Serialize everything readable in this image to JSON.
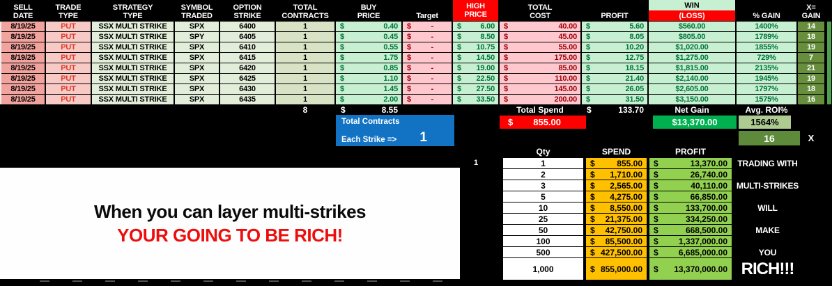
{
  "currency": "$",
  "colors": {
    "win_bg": "#c7efd1",
    "win_text": "#00753a",
    "loss_bg": "#ffc7ce",
    "loss_text": "#9c0006",
    "header_red": "#fe0000",
    "net_gain_green": "#00b050",
    "avg_roi_green": "#aecb92",
    "x_gain_olive": "#668e3c",
    "spend_orange": "#ffc000",
    "profit_green": "#92d050",
    "contracts_blue": "#1273c4",
    "date_salmon": "#f2a39e",
    "trade_pink": "#f7cac5",
    "banner_red": "#ee0d0d"
  },
  "main_table": {
    "headers": [
      "SELL\nDATE",
      "TRADE\nTYPE",
      "STRATEGY\nTYPE",
      "SYMBOL\nTRADED",
      "OPTION\nSTRIKE",
      "TOTAL\nCONTRACTS",
      "BUY\nPRICE",
      "Target",
      "HIGH\nPRICE",
      "TOTAL\nCOST",
      "PROFIT",
      {
        "top": "WIN",
        "bottom": "(LOSS)"
      },
      "% GAIN",
      "X=\nGAIN"
    ],
    "rows": [
      {
        "sell_date": "8/19/25",
        "trade_type": "PUT",
        "strategy": "SSX MULTI STRIKE",
        "symbol": "SPX",
        "strike": "6400",
        "contracts": "1",
        "buy_price": "0.40",
        "target": "-",
        "high_price": "6.00",
        "total_cost": "40.00",
        "profit": "5.60",
        "win_loss": "$560.00",
        "pct_gain": "1400%",
        "x_gain": "14"
      },
      {
        "sell_date": "8/19/25",
        "trade_type": "PUT",
        "strategy": "SSX MULTI STRIKE",
        "symbol": "SPY",
        "strike": "6405",
        "contracts": "1",
        "buy_price": "0.45",
        "target": "-",
        "high_price": "8.50",
        "total_cost": "45.00",
        "profit": "8.05",
        "win_loss": "$805.00",
        "pct_gain": "1789%",
        "x_gain": "18"
      },
      {
        "sell_date": "8/19/25",
        "trade_type": "PUT",
        "strategy": "SSX MULTI STRIKE",
        "symbol": "SPX",
        "strike": "6410",
        "contracts": "1",
        "buy_price": "0.55",
        "target": "-",
        "high_price": "10.75",
        "total_cost": "55.00",
        "profit": "10.20",
        "win_loss": "$1,020.00",
        "pct_gain": "1855%",
        "x_gain": "19"
      },
      {
        "sell_date": "8/19/25",
        "trade_type": "PUT",
        "strategy": "SSX MULTI STRIKE",
        "symbol": "SPX",
        "strike": "6415",
        "contracts": "1",
        "buy_price": "1.75",
        "target": "-",
        "high_price": "14.50",
        "total_cost": "175.00",
        "profit": "12.75",
        "win_loss": "$1,275.00",
        "pct_gain": "729%",
        "x_gain": "7"
      },
      {
        "sell_date": "8/19/25",
        "trade_type": "PUT",
        "strategy": "SSX MULTI STRIKE",
        "symbol": "SPX",
        "strike": "6420",
        "contracts": "1",
        "buy_price": "0.85",
        "target": "-",
        "high_price": "19.00",
        "total_cost": "85.00",
        "profit": "18.15",
        "win_loss": "$1,815.00",
        "pct_gain": "2135%",
        "x_gain": "21"
      },
      {
        "sell_date": "8/19/25",
        "trade_type": "PUT",
        "strategy": "SSX MULTI STRIKE",
        "symbol": "SPX",
        "strike": "6425",
        "contracts": "1",
        "buy_price": "1.10",
        "target": "-",
        "high_price": "22.50",
        "total_cost": "110.00",
        "profit": "21.40",
        "win_loss": "$2,140.00",
        "pct_gain": "1945%",
        "x_gain": "19"
      },
      {
        "sell_date": "8/19/25",
        "trade_type": "PUT",
        "strategy": "SSX MULTI STRIKE",
        "symbol": "SPX",
        "strike": "6430",
        "contracts": "1",
        "buy_price": "1.45",
        "target": "-",
        "high_price": "27.50",
        "total_cost": "145.00",
        "profit": "26.05",
        "win_loss": "$2,605.00",
        "pct_gain": "1797%",
        "x_gain": "18"
      },
      {
        "sell_date": "8/19/25",
        "trade_type": "PUT",
        "strategy": "SSX MULTI STRIKE",
        "symbol": "SPX",
        "strike": "6435",
        "contracts": "1",
        "buy_price": "2.00",
        "target": "-",
        "high_price": "33.50",
        "total_cost": "200.00",
        "profit": "31.50",
        "win_loss": "$3,150.00",
        "pct_gain": "1575%",
        "x_gain": "16"
      }
    ],
    "totals": {
      "contracts": "8",
      "buy_price": "8.55",
      "spend_label": "Total Spend",
      "profit": "133.70",
      "net_gain_label": "Net Gain",
      "avg_roi_label": "Avg. ROI%"
    }
  },
  "summary": {
    "total_spend": "855.00",
    "net_gain": "$13,370.00",
    "avg_roi": "1564%",
    "multiplier": "16",
    "multiplier_suffix": "X"
  },
  "contracts_box": {
    "title": "Total Contracts",
    "label": "Each Strike =>",
    "value": "1"
  },
  "row_marker": "1",
  "scale_table": {
    "headers": [
      "Qty",
      "SPEND",
      "PROFIT"
    ],
    "rows": [
      {
        "qty": "1",
        "spend": "855.00",
        "profit": "13,370.00",
        "label": "TRADING WITH",
        "big": false
      },
      {
        "qty": "2",
        "spend": "1,710.00",
        "profit": "26,740.00",
        "label": "",
        "big": false
      },
      {
        "qty": "3",
        "spend": "2,565.00",
        "profit": "40,110.00",
        "label": "MULTI-STRIKES",
        "big": false
      },
      {
        "qty": "5",
        "spend": "4,275.00",
        "profit": "66,850.00",
        "label": "",
        "big": false
      },
      {
        "qty": "10",
        "spend": "8,550.00",
        "profit": "133,700.00",
        "label": "WILL",
        "big": false
      },
      {
        "qty": "25",
        "spend": "21,375.00",
        "profit": "334,250.00",
        "label": "",
        "big": false
      },
      {
        "qty": "50",
        "spend": "42,750.00",
        "profit": "668,500.00",
        "label": "MAKE",
        "big": false
      },
      {
        "qty": "100",
        "spend": "85,500.00",
        "profit": "1,337,000.00",
        "label": "",
        "big": false
      },
      {
        "qty": "500",
        "spend": "427,500.00",
        "profit": "6,685,000.00",
        "label": "YOU",
        "big": false
      },
      {
        "qty": "1,000",
        "spend": "855,000.00",
        "profit": "13,370,000.00",
        "label": "RICH!!!",
        "big": true
      }
    ]
  },
  "banner": {
    "line1": "When you can layer multi-strikes",
    "line2": "YOUR GOING TO BE RICH!"
  }
}
